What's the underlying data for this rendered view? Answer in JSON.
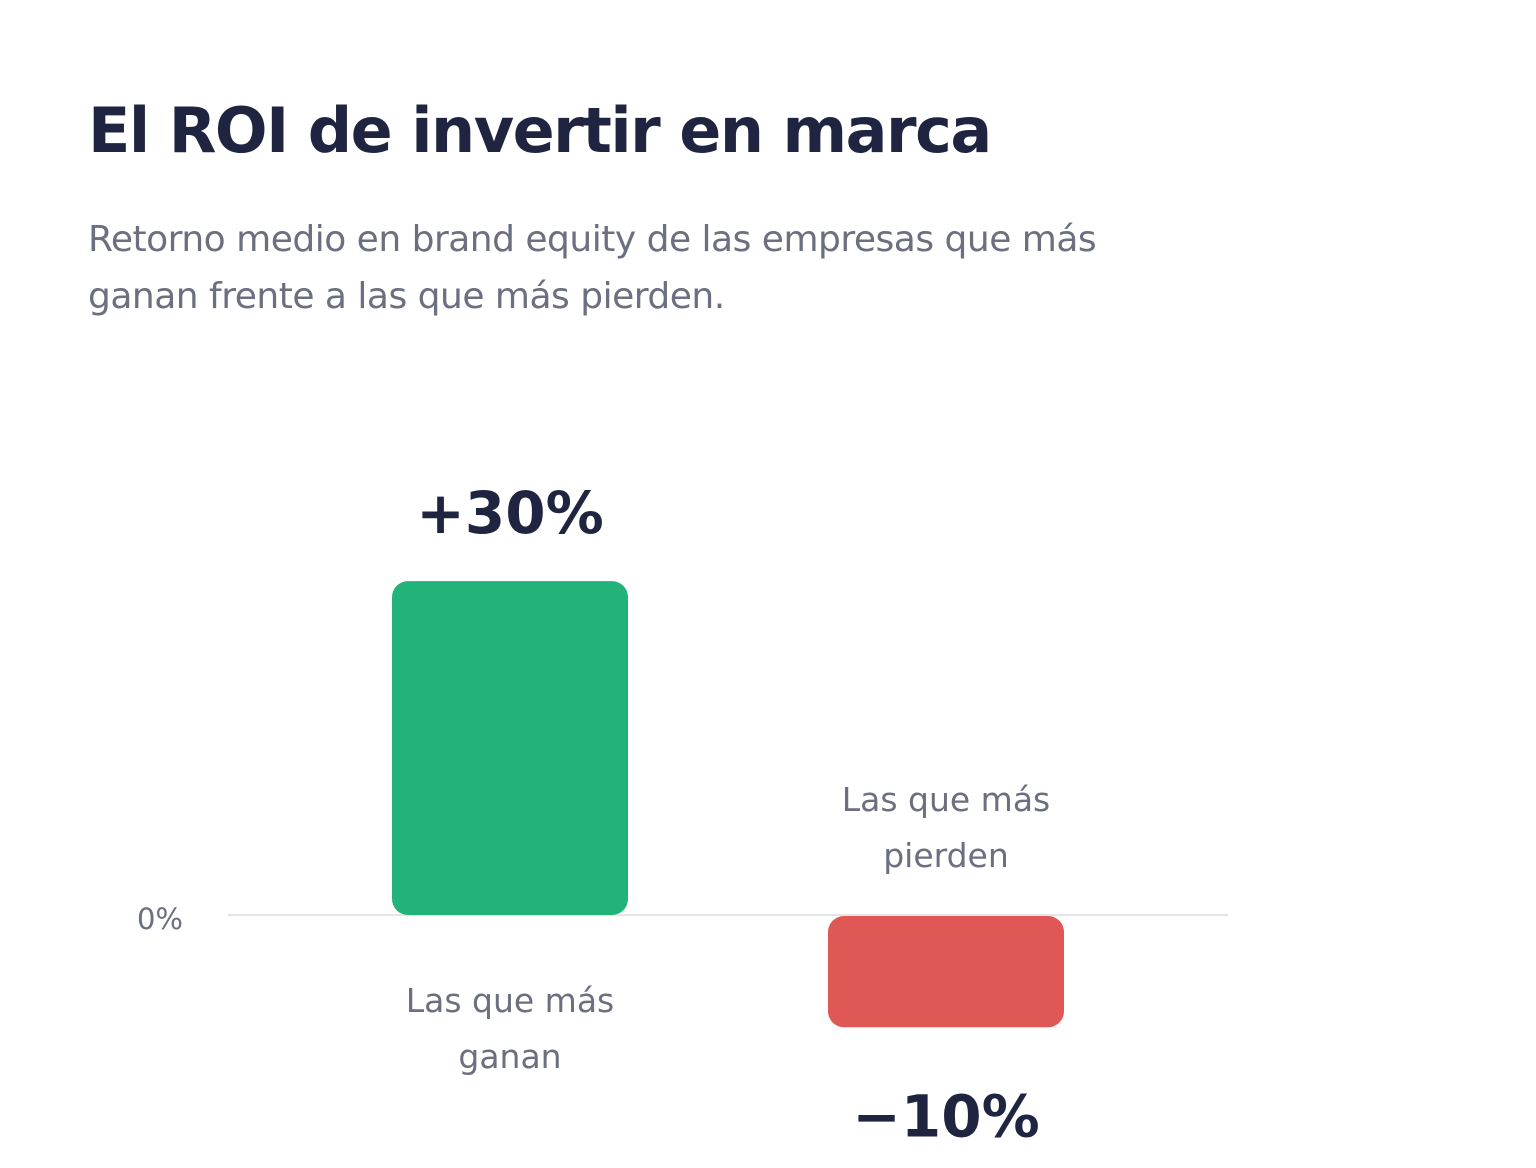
{
  "header": {
    "title": "El ROI de invertir en marca",
    "subtitle": "Retorno medio en brand equity de las empresas que más ganan frente a las que más pierden."
  },
  "chart_data": {
    "type": "bar",
    "title": "El ROI de invertir en marca",
    "subtitle": "Retorno medio en brand equity de las empresas que más ganan frente a las que más pierden.",
    "categories": [
      "Las que más ganan",
      "Las que más pierden"
    ],
    "category_label_lines": [
      [
        "Las que más",
        "ganan"
      ],
      [
        "Las que más",
        "pierden"
      ]
    ],
    "values": [
      30,
      -10
    ],
    "value_labels": [
      "+30%",
      "−10%"
    ],
    "bar_colors": [
      "#22b37b",
      "#e05855"
    ],
    "baseline_label": "0%",
    "unit": "%",
    "grid": false,
    "legend": "none"
  },
  "colors": {
    "title": "#1f2540",
    "subtitle": "#6b6f7f",
    "label": "#6b6f7f",
    "baseline": "#e3e5ea",
    "positive": "#22b37b",
    "negative": "#e05855"
  }
}
